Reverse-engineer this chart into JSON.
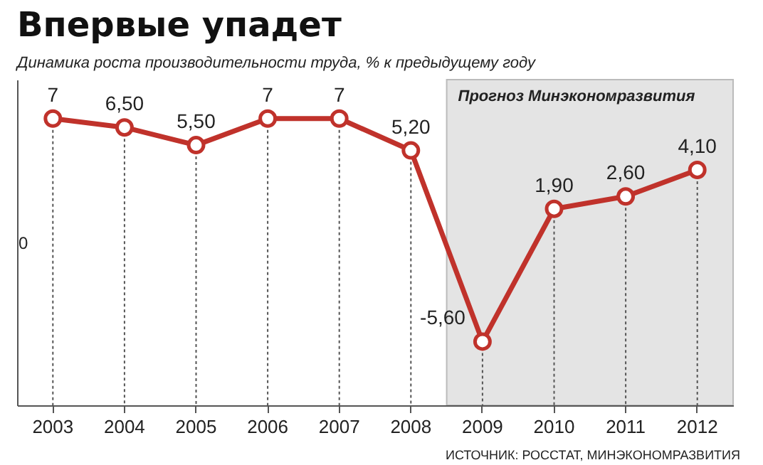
{
  "chart_data": {
    "type": "line",
    "title": "Впервые упадет",
    "subtitle": "Динамика роста производительности труда, % к предыдущему году",
    "categories": [
      "2003",
      "2004",
      "2005",
      "2006",
      "2007",
      "2008",
      "2009",
      "2010",
      "2011",
      "2012"
    ],
    "values": [
      7,
      6.5,
      5.5,
      7,
      7,
      5.2,
      -5.6,
      1.9,
      2.6,
      4.1
    ],
    "value_labels": [
      "7",
      "6,50",
      "5,50",
      "7",
      "7",
      "5,20",
      "-5,60",
      "1,90",
      "2,60",
      "4,10"
    ],
    "color": "#c0322b",
    "marker": "circle",
    "grid": "x",
    "ylim": [
      -9.2,
      9.2
    ],
    "bands": [
      {
        "axis": "x",
        "from": "2009",
        "to": "2012",
        "label": "Прогноз Минэкономразвития",
        "color": "#e4e4e4"
      }
    ],
    "annotations": [
      "0",
      "ИСТОЧНИК: РОССТАТ, МИНЭКОНОМРАЗВИТИЯ"
    ]
  }
}
